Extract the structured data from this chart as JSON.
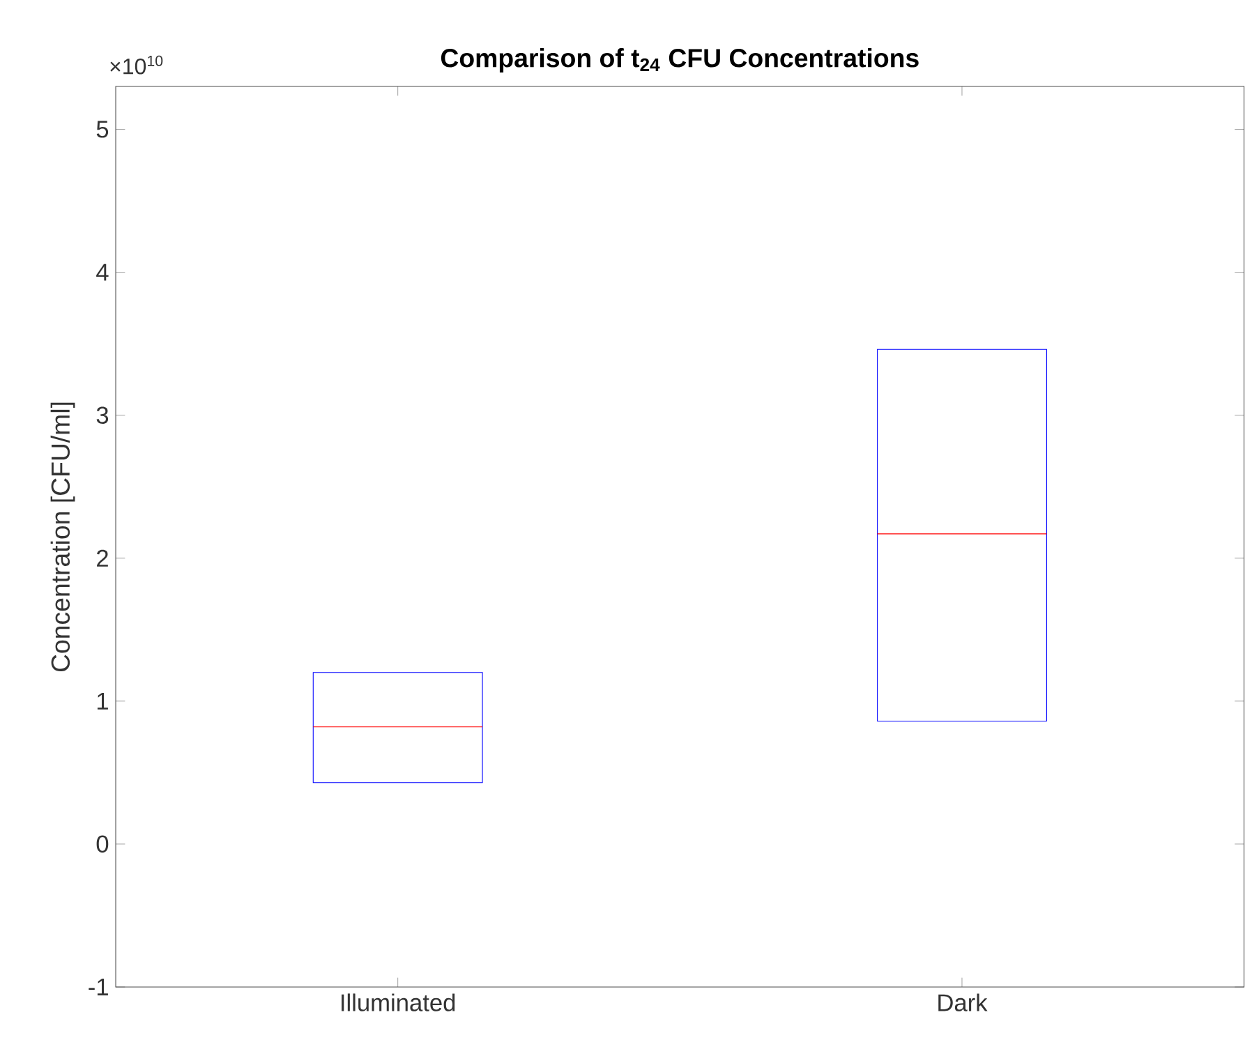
{
  "chart_data": {
    "type": "box",
    "title": "Comparison of t$_{24}$ CFU Concentrations",
    "ylabel": "Concentration [CFU/ml]",
    "annotations": [
      "×10$^{10}$"
    ],
    "categories": [
      "Illuminated",
      "Dark"
    ],
    "ylim": [
      -1,
      5.3
    ],
    "yticks": [
      -1,
      0,
      1,
      2,
      3,
      4,
      5
    ],
    "series": [
      {
        "color": "#0000ff",
        "boxes": [
          {
            "low": 0.43,
            "q1": 0.43,
            "median": 0.82,
            "q3": 1.2,
            "high": 1.2
          },
          {
            "low": 0.86,
            "q1": 0.86,
            "median": 2.17,
            "q3": 3.46,
            "high": 3.46
          }
        ]
      }
    ],
    "grid": false,
    "legend": false
  }
}
